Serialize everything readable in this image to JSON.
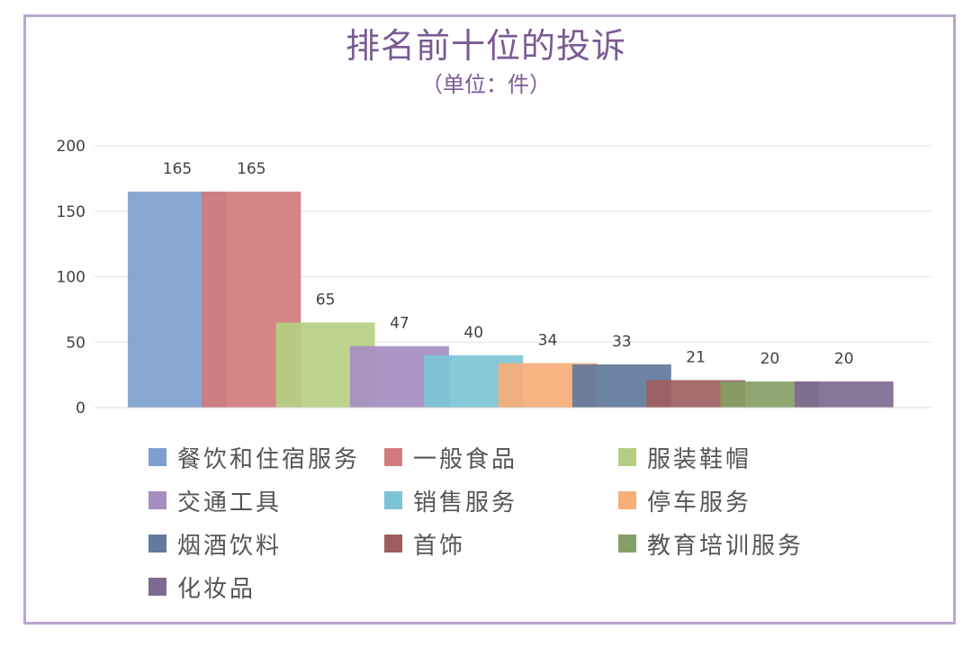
{
  "title": "排名前十位的投诉",
  "subtitle": "（单位：件）",
  "chart_data": {
    "type": "bar",
    "categories": [
      "餐饮和住宿服务",
      "一般食品",
      "服装鞋帽",
      "交通工具",
      "销售服务",
      "停车服务",
      "烟酒饮料",
      "首饰",
      "教育培训服务",
      "化妆品"
    ],
    "values": [
      165,
      165,
      65,
      47,
      40,
      34,
      33,
      21,
      20,
      20
    ],
    "colors": [
      "#7f9fcf",
      "#d37b7c",
      "#b5cf82",
      "#a58dc2",
      "#7cc4d5",
      "#f7ae77",
      "#627a9c",
      "#9f5e5e",
      "#85a066",
      "#7e6a90"
    ],
    "ylim": [
      0,
      200
    ],
    "yticks": [
      0,
      50,
      100,
      150,
      200
    ],
    "grid": true,
    "legend_position": "bottom"
  }
}
